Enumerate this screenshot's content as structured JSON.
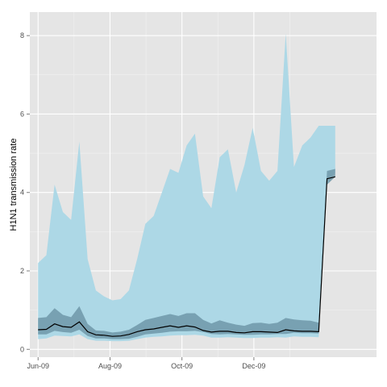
{
  "chart_data": {
    "type": "area",
    "title": "",
    "xlabel": "",
    "ylabel": "H1N1 transmission rate",
    "x_axis": {
      "type": "date",
      "range": [
        "2009-05-25",
        "2010-03-15"
      ],
      "ticks": [
        {
          "date": "2009-06-01",
          "label": "Jun-09"
        },
        {
          "date": "2009-08-01",
          "label": "Aug-09"
        },
        {
          "date": "2009-10-01",
          "label": "Oct-09"
        },
        {
          "date": "2009-12-01",
          "label": "Dec-09"
        }
      ]
    },
    "y_axis": {
      "range": [
        -0.2,
        8.6
      ],
      "ticks": [
        0,
        2,
        4,
        6,
        8
      ]
    },
    "grid": true,
    "legend": "none",
    "colors": {
      "panel_background": "#e5e5e5",
      "gridline": "#ffffff",
      "outer_band": "#add8e6",
      "inner_band": "#6f98a8",
      "median_line": "#000000"
    },
    "series": [
      {
        "x": [
          "2009-06-01",
          "2009-06-08",
          "2009-06-15",
          "2009-06-22",
          "2009-06-29",
          "2009-07-06",
          "2009-07-13",
          "2009-07-20",
          "2009-07-27",
          "2009-08-03",
          "2009-08-10",
          "2009-08-17",
          "2009-08-24",
          "2009-08-31",
          "2009-09-07",
          "2009-09-14",
          "2009-09-21",
          "2009-09-28",
          "2009-10-05",
          "2009-10-12",
          "2009-10-19",
          "2009-10-26",
          "2009-11-02",
          "2009-11-09",
          "2009-11-16",
          "2009-11-23",
          "2009-11-30",
          "2009-12-07",
          "2009-12-14",
          "2009-12-21",
          "2009-12-28",
          "2010-01-04",
          "2010-01-11",
          "2010-01-18",
          "2010-01-25",
          "2010-02-01",
          "2010-02-08"
        ],
        "lower_outer": [
          0.26,
          0.28,
          0.35,
          0.34,
          0.33,
          0.38,
          0.26,
          0.22,
          0.22,
          0.21,
          0.21,
          0.22,
          0.26,
          0.3,
          0.32,
          0.33,
          0.35,
          0.36,
          0.36,
          0.37,
          0.35,
          0.3,
          0.3,
          0.31,
          0.3,
          0.29,
          0.29,
          0.3,
          0.3,
          0.31,
          0.3,
          0.33,
          0.32,
          0.32,
          0.31,
          4.3,
          4.5
        ],
        "upper_outer": [
          2.2,
          2.4,
          4.2,
          3.5,
          3.3,
          5.3,
          2.3,
          1.5,
          1.35,
          1.25,
          1.28,
          1.5,
          2.3,
          3.2,
          3.4,
          4.0,
          4.6,
          4.5,
          5.2,
          5.5,
          3.9,
          3.6,
          4.9,
          5.1,
          4.0,
          4.7,
          5.65,
          4.55,
          4.3,
          4.55,
          8.05,
          4.65,
          5.2,
          5.4,
          5.7,
          5.7,
          5.7
        ],
        "lower_inner": [
          0.38,
          0.38,
          0.47,
          0.44,
          0.42,
          0.5,
          0.34,
          0.28,
          0.28,
          0.26,
          0.26,
          0.27,
          0.32,
          0.38,
          0.4,
          0.42,
          0.45,
          0.46,
          0.46,
          0.47,
          0.44,
          0.39,
          0.38,
          0.39,
          0.38,
          0.37,
          0.37,
          0.38,
          0.38,
          0.39,
          0.39,
          0.42,
          0.41,
          0.41,
          0.4,
          4.2,
          4.4
        ],
        "upper_inner": [
          0.8,
          0.82,
          1.05,
          0.88,
          0.82,
          1.1,
          0.65,
          0.48,
          0.47,
          0.43,
          0.45,
          0.5,
          0.62,
          0.75,
          0.8,
          0.85,
          0.9,
          0.85,
          0.92,
          0.92,
          0.75,
          0.66,
          0.74,
          0.68,
          0.63,
          0.6,
          0.67,
          0.68,
          0.65,
          0.68,
          0.8,
          0.76,
          0.74,
          0.73,
          0.68,
          4.55,
          4.6
        ],
        "median": [
          0.5,
          0.51,
          0.65,
          0.58,
          0.56,
          0.7,
          0.45,
          0.37,
          0.36,
          0.33,
          0.34,
          0.38,
          0.45,
          0.5,
          0.52,
          0.56,
          0.6,
          0.56,
          0.6,
          0.57,
          0.48,
          0.44,
          0.46,
          0.46,
          0.43,
          0.42,
          0.45,
          0.45,
          0.44,
          0.43,
          0.5,
          0.47,
          0.46,
          0.46,
          0.45,
          4.35,
          4.4
        ]
      }
    ]
  }
}
